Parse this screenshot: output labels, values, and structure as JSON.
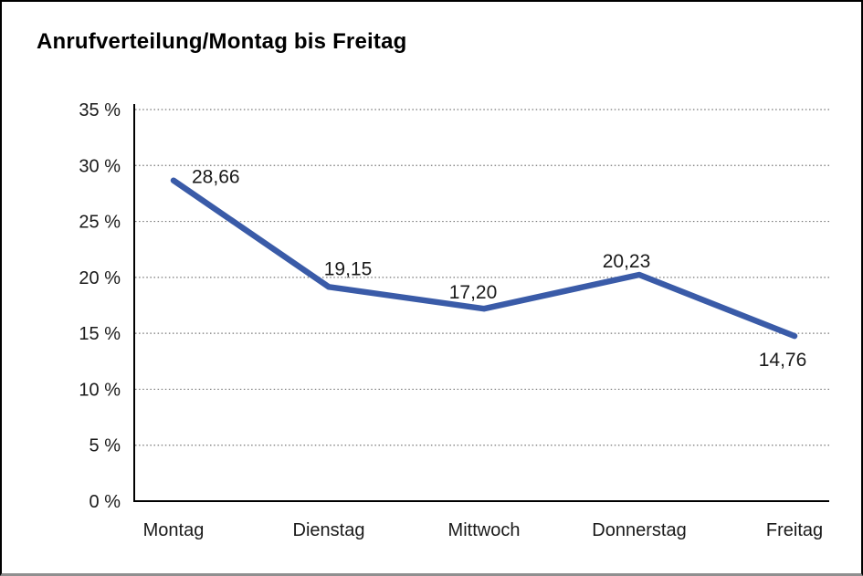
{
  "chart_data": {
    "type": "line",
    "title": "Anrufverteilung/Montag bis Freitag",
    "categories": [
      "Montag",
      "Dienstag",
      "Mittwoch",
      "Donnerstag",
      "Freitag"
    ],
    "series": [
      {
        "name": "Anrufverteilung",
        "values": [
          28.66,
          19.15,
          17.2,
          20.23,
          14.76
        ]
      }
    ],
    "data_labels": [
      "28,66",
      "19,15",
      "17,20",
      "20,23",
      "14,76"
    ],
    "xlabel": "",
    "ylabel": "",
    "ylim": [
      0,
      35
    ],
    "y_ticks": [
      {
        "value": 35,
        "label": "35 %"
      },
      {
        "value": 30,
        "label": "30 %"
      },
      {
        "value": 25,
        "label": "25 %"
      },
      {
        "value": 20,
        "label": "20 %"
      },
      {
        "value": 15,
        "label": "15 %"
      },
      {
        "value": 10,
        "label": "10 %"
      },
      {
        "value": 5,
        "label": "5 %"
      },
      {
        "value": 0,
        "label": "0 %"
      }
    ],
    "grid": "horizontal-dotted",
    "legend": "none"
  },
  "colors": {
    "line": "#3A5BA8",
    "axis": "#000000",
    "grid": "#777777",
    "text": "#1a1a1a",
    "background": "#ffffff",
    "frame_border": "#000000"
  }
}
